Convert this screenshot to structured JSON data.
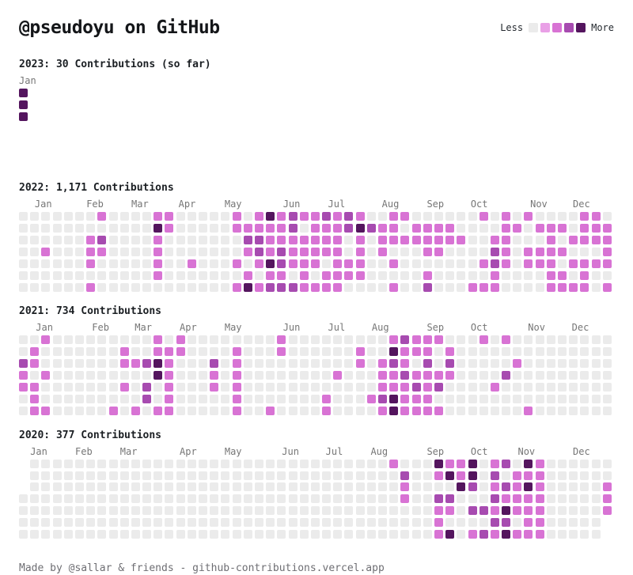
{
  "header": {
    "title": "@pseudoyu on GitHub",
    "legend": {
      "less_label": "Less",
      "more_label": "More",
      "level_colors": [
        "#ebebeb",
        "#e9a0e6",
        "#d873d4",
        "#a74bb0",
        "#54155e"
      ]
    }
  },
  "palette": [
    "#ebebeb",
    "#e9a0e6",
    "#d873d4",
    "#a74bb0",
    "#54155e"
  ],
  "chart_data": [
    {
      "type": "heatmap",
      "title": "2023: 30 Contributions (so far)",
      "year": "2023",
      "total_contributions": 30,
      "row_meaning": "day-of-week, Sunday first",
      "level_scale": "0=none .. 4=most, x=no cell",
      "months": [
        [
          "Jan",
          0
        ]
      ],
      "weeks": [
        "444xxxx"
      ]
    },
    {
      "type": "heatmap",
      "title": "2022: 1,171 Contributions",
      "year": "2022",
      "total_contributions": 1171,
      "months": [
        [
          "Jan",
          1.4
        ],
        [
          "Feb",
          6.0
        ],
        [
          "Mar",
          10.0
        ],
        [
          "Apr",
          14.2
        ],
        [
          "May",
          18.3
        ],
        [
          "Jun",
          23.5
        ],
        [
          "Jul",
          27.5
        ],
        [
          "Aug",
          32.3
        ],
        [
          "Sep",
          36.3
        ],
        [
          "Oct",
          40.2
        ],
        [
          "Nov",
          45.5
        ],
        [
          "Dec",
          49.3
        ]
      ],
      "weeks": [
        "0000000",
        "0000000",
        "0002000",
        "0000000",
        "0000000",
        "0000000",
        "0022202",
        "2032000",
        "0000000",
        "0000000",
        "0000000",
        "0000000",
        "2422220",
        "2200000",
        "0000000",
        "0000200",
        "0000000",
        "0000000",
        "0000000",
        "2200202",
        "0232024",
        "2233202",
        "4222423",
        "2223323",
        "3322203",
        "2022222",
        "2222202",
        "3222022",
        "2222222",
        "3300220",
        "2422220",
        "0300000",
        "0222000",
        "2220202",
        "2020000",
        "0220000",
        "0222023",
        "0222000",
        "0220000",
        "0020000",
        "0000002",
        "2000202",
        "0023322",
        "2222200",
        "0200000",
        "2002200",
        "0202200",
        "0222222",
        "0202022",
        "0020202",
        "2220222",
        "2220200",
        "0222202"
      ]
    },
    {
      "type": "heatmap",
      "title": "2021: 734 Contributions",
      "year": "2021",
      "total_contributions": 734,
      "months": [
        [
          "Jan",
          1.5
        ],
        [
          "Feb",
          6.5
        ],
        [
          "Mar",
          10.3
        ],
        [
          "Apr",
          14.3
        ],
        [
          "May",
          18.3
        ],
        [
          "Jun",
          23.5
        ],
        [
          "Jul",
          27.5
        ],
        [
          "Aug",
          31.4
        ],
        [
          "Sep",
          36.3
        ],
        [
          "Oct",
          40.2
        ],
        [
          "Nov",
          45.3
        ],
        [
          "Dec",
          49.2
        ]
      ],
      "weeks": [
        "0032200",
        "0220222",
        "2002002",
        "0000000",
        "0000000",
        "0000000",
        "0000000",
        "0000000",
        "0000002",
        "0220200",
        "0020002",
        "0030330",
        "2244002",
        "0222222",
        "2200000",
        "0000000",
        "0000000",
        "0032200",
        "0000000",
        "0222222",
        "0000000",
        "0000000",
        "0000002",
        "2200000",
        "0000000",
        "0000000",
        "0000000",
        "0000022",
        "0002000",
        "0000000",
        "0220000",
        "0000020",
        "0022232",
        "2432244",
        "3223222",
        "2202322",
        "2232222",
        "2002302",
        "0232000",
        "0000000",
        "0000000",
        "2000000",
        "0000200",
        "2003000",
        "0020000",
        "0000002",
        "0000000",
        "0000000",
        "0000000",
        "0000000",
        "0000000",
        "0000000",
        "0000000"
      ]
    },
    {
      "type": "heatmap",
      "title": "2020: 377 Contributions",
      "year": "2020",
      "total_contributions": 377,
      "months": [
        [
          "Jan",
          1.0
        ],
        [
          "Feb",
          5.0
        ],
        [
          "Mar",
          9.0
        ],
        [
          "Apr",
          14.3
        ],
        [
          "May",
          18.3
        ],
        [
          "Jun",
          23.4
        ],
        [
          "Jul",
          27.3
        ],
        [
          "Aug",
          31.3
        ],
        [
          "Sep",
          36.3
        ],
        [
          "Oct",
          40.2
        ],
        [
          "Nov",
          44.4
        ],
        [
          "Dec",
          49.3
        ]
      ],
      "weeks": [
        "xxx0000",
        "0000000",
        "0000000",
        "0000000",
        "0000000",
        "0000000",
        "0000000",
        "0000000",
        "0000000",
        "0000000",
        "0000000",
        "0000000",
        "0000000",
        "0000000",
        "0000000",
        "0000000",
        "0000000",
        "0000000",
        "0000000",
        "0000000",
        "0000000",
        "0000000",
        "0000000",
        "0000000",
        "0000000",
        "0000000",
        "0000000",
        "0000000",
        "0000000",
        "0000000",
        "0000000",
        "0000000",
        "0000000",
        "2000000",
        "0322000",
        "0000000",
        "0000000",
        "4203222",
        "2403204",
        "2240000",
        "4430302",
        "0000303",
        "2323232",
        "3032434",
        "0222202",
        "4242222",
        "2222222",
        "0000000",
        "0000000",
        "0000000",
        "0000000",
        "0000000",
        "00222xx"
      ]
    }
  ],
  "footer": {
    "text": "Made by @sallar & friends - github-contributions.vercel.app"
  }
}
